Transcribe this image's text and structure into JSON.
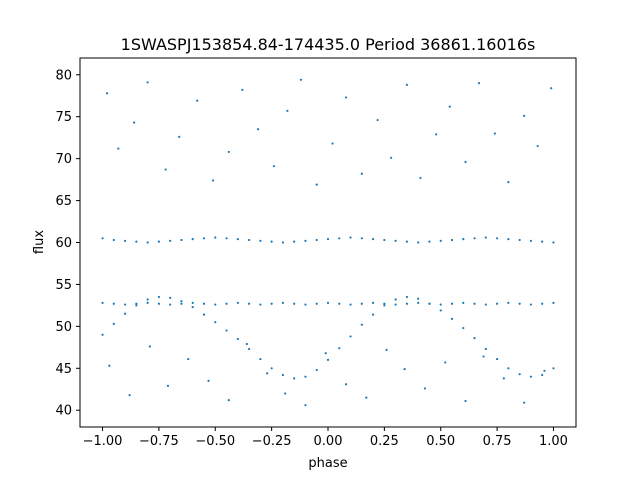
{
  "chart_data": {
    "type": "scatter",
    "title": "1SWASPJ153854.84-174435.0 Period 36861.16016s",
    "xlabel": "phase",
    "ylabel": "flux",
    "xlim": [
      -1.1,
      1.1
    ],
    "ylim": [
      38.0,
      82.0
    ],
    "x_ticks": [
      -1.0,
      -0.75,
      -0.5,
      -0.25,
      0.0,
      0.25,
      0.5,
      0.75,
      1.0
    ],
    "x_tick_labels": [
      "−1.00",
      "−0.75",
      "−0.50",
      "−0.25",
      "0.00",
      "0.25",
      "0.50",
      "0.75",
      "1.00"
    ],
    "y_ticks": [
      40,
      45,
      50,
      55,
      60,
      65,
      70,
      75,
      80
    ],
    "y_tick_labels": [
      "40",
      "45",
      "50",
      "55",
      "60",
      "65",
      "70",
      "75",
      "80"
    ],
    "grid": false,
    "marker_color": "#1f77b4",
    "series": [
      {
        "x": [
          -1.0,
          -0.95,
          -0.9,
          -0.85,
          -0.8,
          -0.75,
          -0.7,
          -0.65,
          -0.6,
          -0.55,
          -0.5,
          -0.45,
          -0.4,
          -0.35,
          -0.3,
          -0.25,
          -0.2,
          -0.15,
          -0.1,
          -0.05,
          0.0,
          0.05,
          0.1,
          0.15,
          0.2,
          0.25,
          0.3,
          0.35,
          0.4,
          0.45,
          0.5,
          0.55,
          0.6,
          0.65,
          0.7,
          0.75,
          0.8,
          0.85,
          0.9,
          0.95,
          1.0
        ],
        "y": [
          60.5,
          60.3,
          60.2,
          60.1,
          60.0,
          60.1,
          60.2,
          60.3,
          60.4,
          60.5,
          60.6,
          60.5,
          60.4,
          60.3,
          60.2,
          60.1,
          60.0,
          60.1,
          60.2,
          60.3,
          60.4,
          60.5,
          60.6,
          60.5,
          60.4,
          60.3,
          60.2,
          60.1,
          60.0,
          60.1,
          60.2,
          60.3,
          60.4,
          60.5,
          60.6,
          60.5,
          60.4,
          60.3,
          60.2,
          60.1,
          60.0
        ]
      },
      {
        "x": [
          -1.0,
          -0.95,
          -0.9,
          -0.85,
          -0.8,
          -0.75,
          -0.7,
          -0.65,
          -0.6,
          -0.55,
          -0.5,
          -0.45,
          -0.4,
          -0.35,
          -0.3,
          -0.25,
          -0.2,
          -0.15,
          -0.1,
          -0.05,
          0.0,
          0.05,
          0.1,
          0.15,
          0.2,
          0.25,
          0.3,
          0.35,
          0.4,
          0.45,
          0.5,
          0.55,
          0.6,
          0.65,
          0.7,
          0.75,
          0.8,
          0.85,
          0.9,
          0.95,
          1.0
        ],
        "y": [
          52.8,
          52.7,
          52.6,
          52.7,
          52.8,
          52.7,
          52.6,
          52.7,
          52.8,
          52.7,
          52.6,
          52.7,
          52.8,
          52.7,
          52.6,
          52.7,
          52.8,
          52.7,
          52.6,
          52.7,
          52.8,
          52.7,
          52.6,
          52.7,
          52.8,
          52.7,
          52.6,
          52.7,
          52.8,
          52.7,
          52.6,
          52.7,
          52.8,
          52.7,
          52.6,
          52.7,
          52.8,
          52.7,
          52.6,
          52.7,
          52.8
        ]
      },
      {
        "x": [
          -1.0,
          -0.95,
          -0.9,
          -0.85,
          -0.8,
          -0.75,
          -0.7,
          -0.65,
          -0.6,
          -0.55,
          -0.5,
          -0.45,
          -0.4,
          -0.35,
          -0.3,
          -0.25,
          -0.2,
          -0.15,
          -0.1,
          -0.05,
          0.0,
          0.05,
          0.1,
          0.15,
          0.2,
          0.25,
          0.3,
          0.35,
          0.4,
          0.45,
          0.5,
          0.55,
          0.6,
          0.65,
          0.7,
          0.75,
          0.8,
          0.85,
          0.9,
          0.95,
          1.0
        ],
        "y": [
          49.0,
          50.3,
          51.5,
          52.5,
          53.2,
          53.5,
          53.4,
          53.0,
          52.3,
          51.4,
          50.5,
          49.5,
          48.5,
          47.3,
          46.1,
          45.0,
          44.2,
          43.8,
          44.0,
          44.8,
          46.0,
          47.4,
          48.8,
          50.2,
          51.4,
          52.5,
          53.2,
          53.5,
          53.3,
          52.7,
          51.9,
          50.9,
          49.8,
          48.6,
          47.3,
          46.1,
          45.0,
          44.3,
          44.0,
          44.2,
          45.0
        ]
      },
      {
        "x": [
          -0.98,
          -0.93,
          -0.86,
          -0.8,
          -0.72,
          -0.66,
          -0.58,
          -0.51,
          -0.44,
          -0.38,
          -0.31,
          -0.24,
          -0.18,
          -0.12,
          -0.05,
          0.02,
          0.08,
          0.15,
          0.22,
          0.28,
          0.35,
          0.41,
          0.48,
          0.54,
          0.61,
          0.67,
          0.74,
          0.8,
          0.87,
          0.93,
          0.99
        ],
        "y": [
          77.8,
          71.2,
          74.3,
          79.1,
          68.7,
          72.6,
          76.9,
          67.4,
          70.8,
          78.2,
          73.5,
          69.1,
          75.7,
          79.4,
          66.9,
          71.8,
          77.3,
          68.2,
          74.6,
          70.1,
          78.8,
          67.7,
          72.9,
          76.2,
          69.6,
          79.0,
          73.0,
          67.2,
          75.1,
          71.5,
          78.4
        ]
      },
      {
        "x": [
          -0.97,
          -0.88,
          -0.79,
          -0.71,
          -0.62,
          -0.53,
          -0.44,
          -0.36,
          -0.27,
          -0.19,
          -0.1,
          -0.01,
          0.08,
          0.17,
          0.26,
          0.34,
          0.43,
          0.52,
          0.61,
          0.69,
          0.78,
          0.87,
          0.96
        ],
        "y": [
          45.3,
          41.8,
          47.6,
          42.9,
          46.1,
          43.5,
          41.2,
          47.9,
          44.4,
          42.0,
          40.6,
          46.8,
          43.1,
          41.5,
          47.2,
          44.9,
          42.6,
          45.7,
          41.1,
          46.4,
          43.8,
          40.9,
          44.7
        ]
      }
    ]
  }
}
